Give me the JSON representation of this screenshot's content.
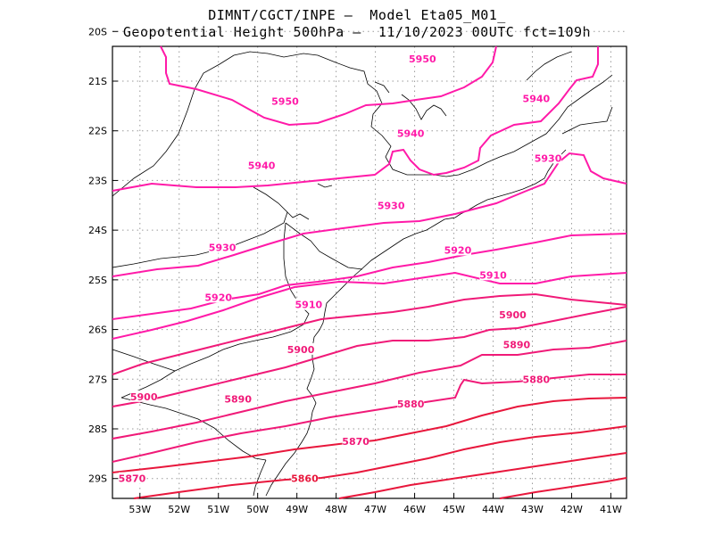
{
  "title": {
    "line1": "DIMNT/CGCT/INPE –  Model Eta05_M01_",
    "line2": "Geopotential Height 500hPa –  11/10/2023 00UTC fct=109h"
  },
  "axes": {
    "x_ticks": [
      "53W",
      "52W",
      "51W",
      "50W",
      "49W",
      "48W",
      "47W",
      "46W",
      "45W",
      "44W",
      "43W",
      "42W",
      "41W"
    ],
    "y_ticks": [
      "20S",
      "21S",
      "22S",
      "23S",
      "24S",
      "25S",
      "26S",
      "27S",
      "28S",
      "29S"
    ]
  },
  "colors": {
    "contour_high": "#ff1aa8",
    "contour_low": "#e8173c",
    "coast": "#000000",
    "grid": "#9a9a9a"
  },
  "chart_data": {
    "type": "contour-map",
    "variable": "Geopotential Height 500hPa",
    "x_range_lon": [
      -53.7,
      -40.6
    ],
    "y_range_lat": [
      -20.3,
      -29.4
    ],
    "grid": true,
    "contour_levels": [
      5860,
      5870,
      5880,
      5890,
      5900,
      5910,
      5920,
      5930,
      5940,
      5950
    ],
    "contour_labels": [
      {
        "text": "5950",
        "lon": -45.8,
        "lat": -20.55
      },
      {
        "text": "5950",
        "lon": -49.3,
        "lat": -21.4
      },
      {
        "text": "5940",
        "lon": -42.9,
        "lat": -21.35
      },
      {
        "text": "5940",
        "lon": -46.1,
        "lat": -22.05
      },
      {
        "text": "5940",
        "lon": -49.9,
        "lat": -22.7
      },
      {
        "text": "5930",
        "lon": -42.6,
        "lat": -22.55
      },
      {
        "text": "5930",
        "lon": -46.6,
        "lat": -23.5
      },
      {
        "text": "5930",
        "lon": -50.9,
        "lat": -24.35
      },
      {
        "text": "5920",
        "lon": -44.9,
        "lat": -24.4
      },
      {
        "text": "5920",
        "lon": -51.0,
        "lat": -25.35
      },
      {
        "text": "5910",
        "lon": -44.0,
        "lat": -24.9
      },
      {
        "text": "5910",
        "lon": -48.7,
        "lat": -25.5
      },
      {
        "text": "5900",
        "lon": -43.5,
        "lat": -25.7
      },
      {
        "text": "5900",
        "lon": -48.9,
        "lat": -26.4
      },
      {
        "text": "5900",
        "lon": -52.9,
        "lat": -27.35
      },
      {
        "text": "5890",
        "lon": -43.4,
        "lat": -26.3
      },
      {
        "text": "5890",
        "lon": -50.5,
        "lat": -27.4
      },
      {
        "text": "5880",
        "lon": -42.9,
        "lat": -27.0
      },
      {
        "text": "5880",
        "lon": -46.1,
        "lat": -27.5
      },
      {
        "text": "5870",
        "lon": -47.5,
        "lat": -28.25
      },
      {
        "text": "5870",
        "lon": -53.2,
        "lat": -29.0
      },
      {
        "text": "5860",
        "lon": -48.8,
        "lat": -29.0
      }
    ]
  }
}
